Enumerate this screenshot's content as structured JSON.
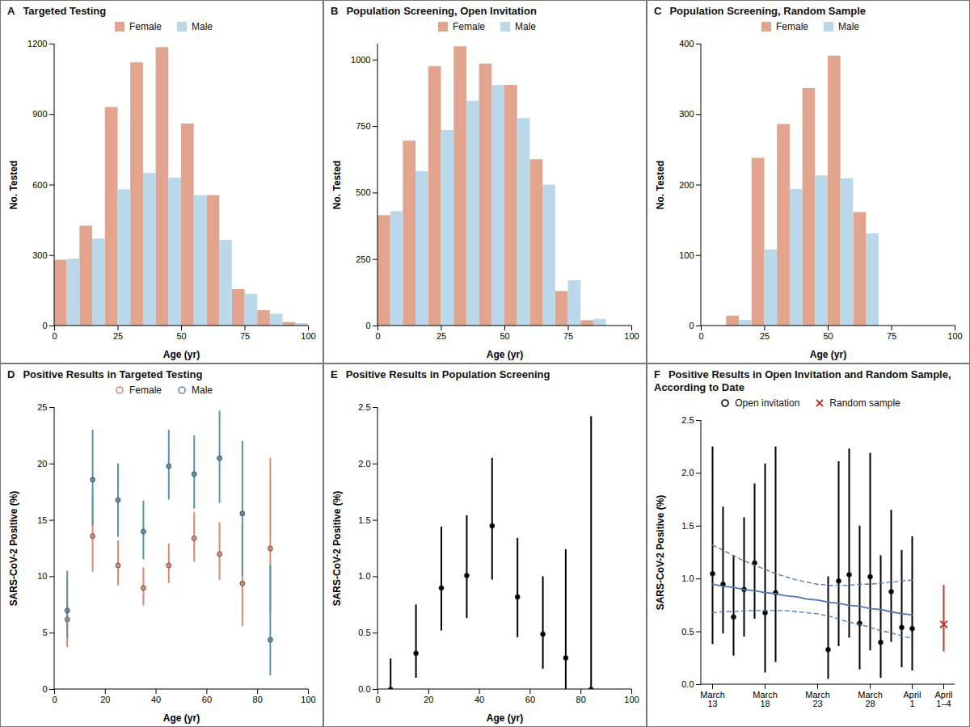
{
  "chart_data": [
    {
      "panel": "A",
      "type": "histogram",
      "title": "Targeted Testing",
      "x_label": "Age (yr)",
      "y_label": "No. Tested",
      "bins": [
        0,
        10,
        20,
        30,
        40,
        50,
        60,
        70,
        80,
        90,
        100
      ],
      "series": [
        {
          "name": "Female",
          "color": "#e2a48d",
          "values": [
            280,
            425,
            930,
            1120,
            1185,
            860,
            555,
            155,
            65,
            15
          ]
        },
        {
          "name": "Male",
          "color": "#b9d9ea",
          "values": [
            285,
            370,
            580,
            650,
            630,
            555,
            365,
            135,
            50,
            10
          ]
        }
      ],
      "xlim": [
        0,
        100
      ],
      "xticks": [
        0,
        25,
        50,
        75,
        100
      ],
      "ylim": [
        0,
        1200
      ],
      "yticks": [
        0,
        300,
        600,
        900,
        1200
      ],
      "legend": "top"
    },
    {
      "panel": "B",
      "type": "histogram",
      "title": "Population Screening, Open Invitation",
      "x_label": "Age (yr)",
      "y_label": "No. Tested",
      "bins": [
        0,
        10,
        20,
        30,
        40,
        50,
        60,
        70,
        80,
        90
      ],
      "series": [
        {
          "name": "Female",
          "color": "#e2a48d",
          "values": [
            415,
            695,
            975,
            1050,
            985,
            905,
            625,
            130,
            20
          ]
        },
        {
          "name": "Male",
          "color": "#b9d9ea",
          "values": [
            430,
            580,
            735,
            845,
            905,
            780,
            530,
            170,
            25
          ]
        }
      ],
      "xlim": [
        0,
        100
      ],
      "xticks": [
        0,
        25,
        50,
        75,
        100
      ],
      "ylim": [
        0,
        1060
      ],
      "yticks": [
        0,
        250,
        500,
        750,
        1000
      ],
      "legend": "top"
    },
    {
      "panel": "C",
      "type": "histogram",
      "title": "Population Screening, Random Sample",
      "x_label": "Age (yr)",
      "y_label": "No. Tested",
      "bins": [
        10,
        20,
        30,
        40,
        50,
        60,
        70
      ],
      "series": [
        {
          "name": "Female",
          "color": "#e2a48d",
          "values": [
            14,
            238,
            286,
            337,
            383,
            161
          ]
        },
        {
          "name": "Male",
          "color": "#b9d9ea",
          "values": [
            8,
            108,
            194,
            213,
            209,
            131
          ]
        }
      ],
      "xlim": [
        0,
        100
      ],
      "xticks": [
        0,
        25,
        50,
        75,
        100
      ],
      "ylim": [
        0,
        400
      ],
      "yticks": [
        0,
        100,
        200,
        300,
        400
      ],
      "legend": "top"
    },
    {
      "panel": "D",
      "type": "scatter",
      "title": "Positive Results in Targeted Testing",
      "x_label": "Age (yr)",
      "y_label": "SARS-CoV-2 Positive (%)",
      "x": [
        5,
        15,
        25,
        35,
        45,
        55,
        65,
        74,
        85
      ],
      "series": [
        {
          "name": "Female",
          "color": "#d98b70",
          "marker": "circle",
          "values": [
            6.2,
            13.6,
            11.0,
            9.0,
            11.0,
            13.4,
            12.0,
            9.4,
            12.5
          ],
          "ci_low": [
            3.7,
            10.4,
            9.2,
            7.4,
            9.4,
            11.3,
            9.7,
            5.6,
            6.8
          ],
          "ci_high": [
            9.6,
            17.3,
            13.2,
            10.8,
            12.9,
            15.7,
            14.8,
            14.6,
            20.5
          ]
        },
        {
          "name": "Male",
          "color": "#5b93aa",
          "marker": "circle",
          "values": [
            7.0,
            18.6,
            16.8,
            14.0,
            19.8,
            19.1,
            20.5,
            15.6,
            4.4
          ],
          "ci_low": [
            4.5,
            14.5,
            13.5,
            11.5,
            16.8,
            16.0,
            16.5,
            10.0,
            1.2
          ],
          "ci_high": [
            10.5,
            23.0,
            20.0,
            16.7,
            23.0,
            22.5,
            24.7,
            22.0,
            11.0
          ]
        }
      ],
      "xlim": [
        0,
        100
      ],
      "xticks": [
        0,
        20,
        40,
        60,
        80,
        100
      ],
      "ylim": [
        0,
        25
      ],
      "yticks": [
        0,
        5,
        10,
        15,
        20,
        25
      ],
      "legend": "top"
    },
    {
      "panel": "E",
      "type": "scatter",
      "title": "Positive Results in Population Screening",
      "x_label": "Age (yr)",
      "y_label": "SARS-CoV-2 Positive (%)",
      "x": [
        5,
        15,
        25,
        35,
        45,
        55,
        65,
        74,
        84
      ],
      "values": [
        0.0,
        0.32,
        0.9,
        1.01,
        1.45,
        0.82,
        0.49,
        0.28,
        0.0
      ],
      "ci_low": [
        0.0,
        0.1,
        0.52,
        0.63,
        0.97,
        0.46,
        0.18,
        0.0,
        0.0
      ],
      "ci_high": [
        0.27,
        0.75,
        1.44,
        1.54,
        2.05,
        1.34,
        1.0,
        1.24,
        2.42
      ],
      "color": "#000000",
      "marker": "circle",
      "xlim": [
        0,
        100
      ],
      "xticks": [
        0,
        20,
        40,
        60,
        80,
        100
      ],
      "ylim": [
        0,
        2.5
      ],
      "yticks": [
        {
          "value": 0,
          "label": "0.0"
        },
        {
          "value": 0.5,
          "label": "0.5"
        },
        {
          "value": 1,
          "label": "1.0"
        },
        {
          "value": 1.5,
          "label": "1.5"
        },
        {
          "value": 2,
          "label": "2.0"
        },
        {
          "value": 2.5,
          "label": "2.5"
        }
      ]
    },
    {
      "panel": "F",
      "type": "scatter",
      "title": "Positive Results in Open Invitation and Random Sample, According to Date",
      "y_label": "SARS-CoV-2 Positive (%)",
      "categories": [
        "March 13",
        null,
        null,
        null,
        null,
        "March 18",
        null,
        null,
        null,
        null,
        "March 23",
        null,
        null,
        null,
        null,
        "March 28",
        null,
        null,
        null,
        "April 1",
        null,
        null,
        "April 1–4"
      ],
      "series": [
        {
          "name": "Open invitation",
          "color": "#000000",
          "marker": "circle",
          "values": [
            1.05,
            0.95,
            0.64,
            0.9,
            1.15,
            0.68,
            0.87,
            null,
            null,
            null,
            null,
            0.33,
            0.98,
            1.04,
            0.58,
            1.02,
            0.4,
            0.88,
            0.54,
            0.53,
            null,
            null,
            null
          ],
          "ci_low": [
            0.38,
            0.48,
            0.27,
            0.45,
            0.62,
            0.11,
            0.21,
            null,
            null,
            null,
            null,
            0.05,
            0.36,
            0.44,
            0.14,
            0.32,
            0.06,
            0.4,
            0.16,
            0.13,
            null,
            null,
            null
          ],
          "ci_high": [
            2.25,
            1.68,
            1.22,
            1.58,
            1.9,
            2.09,
            2.25,
            null,
            null,
            null,
            null,
            1.02,
            2.11,
            2.23,
            1.5,
            2.19,
            1.22,
            1.65,
            1.27,
            1.4,
            null,
            null,
            null
          ]
        },
        {
          "name": "Random sample",
          "color": "#c0392b",
          "marker": "x",
          "values": [
            null,
            null,
            null,
            null,
            null,
            null,
            null,
            null,
            null,
            null,
            null,
            null,
            null,
            null,
            null,
            null,
            null,
            null,
            null,
            null,
            null,
            null,
            0.57
          ],
          "ci_low": [
            null,
            null,
            null,
            null,
            null,
            null,
            null,
            null,
            null,
            null,
            null,
            null,
            null,
            null,
            null,
            null,
            null,
            null,
            null,
            null,
            null,
            null,
            0.31
          ],
          "ci_high": [
            null,
            null,
            null,
            null,
            null,
            null,
            null,
            null,
            null,
            null,
            null,
            null,
            null,
            null,
            null,
            null,
            null,
            null,
            null,
            null,
            null,
            null,
            0.94
          ]
        },
        {
          "type": "line",
          "color": "#4a78b8",
          "line_style": "solid",
          "values": [
            0.95,
            0.93,
            0.92,
            0.9,
            0.89,
            0.87,
            0.86,
            0.84,
            0.83,
            0.81,
            0.8,
            0.78,
            0.77,
            0.75,
            0.74,
            0.72,
            0.71,
            0.69,
            0.67,
            0.66,
            null,
            null,
            null
          ],
          "ci_low": [
            0.68,
            0.69,
            0.69,
            0.7,
            0.7,
            0.7,
            0.7,
            0.7,
            0.69,
            0.68,
            0.67,
            0.65,
            0.62,
            0.59,
            0.57,
            0.54,
            0.51,
            0.49,
            0.46,
            0.44,
            null,
            null,
            null
          ],
          "ci_high": [
            1.32,
            1.27,
            1.22,
            1.17,
            1.13,
            1.09,
            1.05,
            1.02,
            0.99,
            0.97,
            0.95,
            0.94,
            0.94,
            0.94,
            0.95,
            0.95,
            0.96,
            0.97,
            0.98,
            0.99,
            null,
            null,
            null
          ]
        }
      ],
      "ylim": [
        0,
        2.5
      ],
      "yticks": [
        {
          "value": 0,
          "label": "0.0"
        },
        {
          "value": 0.5,
          "label": "0.5"
        },
        {
          "value": 1,
          "label": "1.0"
        },
        {
          "value": 1.5,
          "label": "1.5"
        },
        {
          "value": 2,
          "label": "2.0"
        },
        {
          "value": 2.5,
          "label": "2.5"
        }
      ],
      "legend": "top"
    }
  ]
}
